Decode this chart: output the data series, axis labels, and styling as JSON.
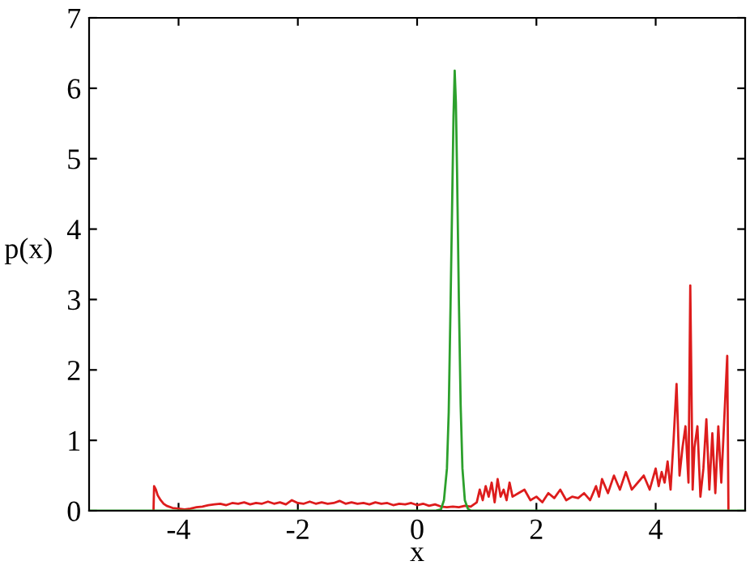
{
  "chart_data": {
    "type": "line",
    "xlabel": "x",
    "ylabel": "p(x)",
    "xlim": [
      -5.5,
      5.5
    ],
    "ylim": [
      0,
      7
    ],
    "xticks": [
      -4,
      -2,
      0,
      2,
      4
    ],
    "yticks": [
      0,
      1,
      2,
      3,
      4,
      5,
      6,
      7
    ],
    "grid": false,
    "legend": false,
    "series": [
      {
        "color": "#dd1c1c",
        "x": [
          -4.42,
          -4.41,
          -4.38,
          -4.35,
          -4.3,
          -4.25,
          -4.2,
          -4.1,
          -4.0,
          -3.9,
          -3.8,
          -3.7,
          -3.6,
          -3.5,
          -3.4,
          -3.3,
          -3.2,
          -3.1,
          -3.0,
          -2.9,
          -2.8,
          -2.7,
          -2.6,
          -2.5,
          -2.4,
          -2.3,
          -2.2,
          -2.1,
          -2.0,
          -1.9,
          -1.8,
          -1.7,
          -1.6,
          -1.5,
          -1.4,
          -1.3,
          -1.2,
          -1.1,
          -1.0,
          -0.9,
          -0.8,
          -0.7,
          -0.6,
          -0.5,
          -0.4,
          -0.3,
          -0.2,
          -0.1,
          0.0,
          0.1,
          0.2,
          0.3,
          0.4,
          0.5,
          0.6,
          0.7,
          0.8,
          0.9,
          1.0,
          1.05,
          1.1,
          1.15,
          1.2,
          1.25,
          1.3,
          1.35,
          1.4,
          1.45,
          1.5,
          1.55,
          1.6,
          1.7,
          1.8,
          1.9,
          2.0,
          2.1,
          2.2,
          2.3,
          2.4,
          2.5,
          2.6,
          2.7,
          2.8,
          2.9,
          3.0,
          3.05,
          3.1,
          3.2,
          3.3,
          3.4,
          3.5,
          3.6,
          3.7,
          3.8,
          3.9,
          4.0,
          4.05,
          4.1,
          4.15,
          4.2,
          4.25,
          4.3,
          4.35,
          4.4,
          4.45,
          4.5,
          4.55,
          4.58,
          4.62,
          4.65,
          4.7,
          4.75,
          4.8,
          4.85,
          4.9,
          4.95,
          5.0,
          5.05,
          5.1,
          5.15,
          5.2,
          5.22
        ],
        "values": [
          0,
          0.35,
          0.3,
          0.22,
          0.15,
          0.1,
          0.07,
          0.04,
          0.03,
          0.02,
          0.03,
          0.05,
          0.06,
          0.08,
          0.09,
          0.1,
          0.08,
          0.11,
          0.1,
          0.12,
          0.09,
          0.11,
          0.1,
          0.13,
          0.1,
          0.12,
          0.09,
          0.15,
          0.11,
          0.1,
          0.13,
          0.1,
          0.12,
          0.1,
          0.11,
          0.14,
          0.1,
          0.12,
          0.1,
          0.11,
          0.09,
          0.12,
          0.1,
          0.11,
          0.08,
          0.1,
          0.09,
          0.11,
          0.08,
          0.1,
          0.07,
          0.09,
          0.06,
          0.05,
          0.06,
          0.05,
          0.07,
          0.06,
          0.12,
          0.3,
          0.15,
          0.35,
          0.2,
          0.4,
          0.12,
          0.45,
          0.2,
          0.3,
          0.15,
          0.4,
          0.2,
          0.25,
          0.3,
          0.15,
          0.2,
          0.12,
          0.25,
          0.18,
          0.3,
          0.15,
          0.2,
          0.18,
          0.25,
          0.15,
          0.35,
          0.2,
          0.45,
          0.25,
          0.5,
          0.3,
          0.55,
          0.3,
          0.4,
          0.5,
          0.3,
          0.6,
          0.35,
          0.55,
          0.4,
          0.7,
          0.3,
          1.0,
          1.8,
          0.5,
          0.9,
          1.2,
          0.4,
          3.2,
          0.3,
          0.9,
          1.2,
          0.2,
          0.6,
          1.3,
          0.3,
          1.1,
          0.25,
          1.2,
          0.4,
          1.3,
          2.2,
          0
        ]
      },
      {
        "color": "#2ca02c",
        "x": [
          -5.5,
          0.3,
          0.4,
          0.45,
          0.5,
          0.53,
          0.56,
          0.59,
          0.61,
          0.63,
          0.65,
          0.67,
          0.7,
          0.73,
          0.76,
          0.8,
          0.85,
          0.9,
          1.0,
          5.5
        ],
        "values": [
          0,
          0,
          0.02,
          0.15,
          0.6,
          1.4,
          2.9,
          4.5,
          5.6,
          6.25,
          5.8,
          4.8,
          3.0,
          1.5,
          0.6,
          0.15,
          0.03,
          0,
          0,
          0
        ]
      }
    ]
  }
}
